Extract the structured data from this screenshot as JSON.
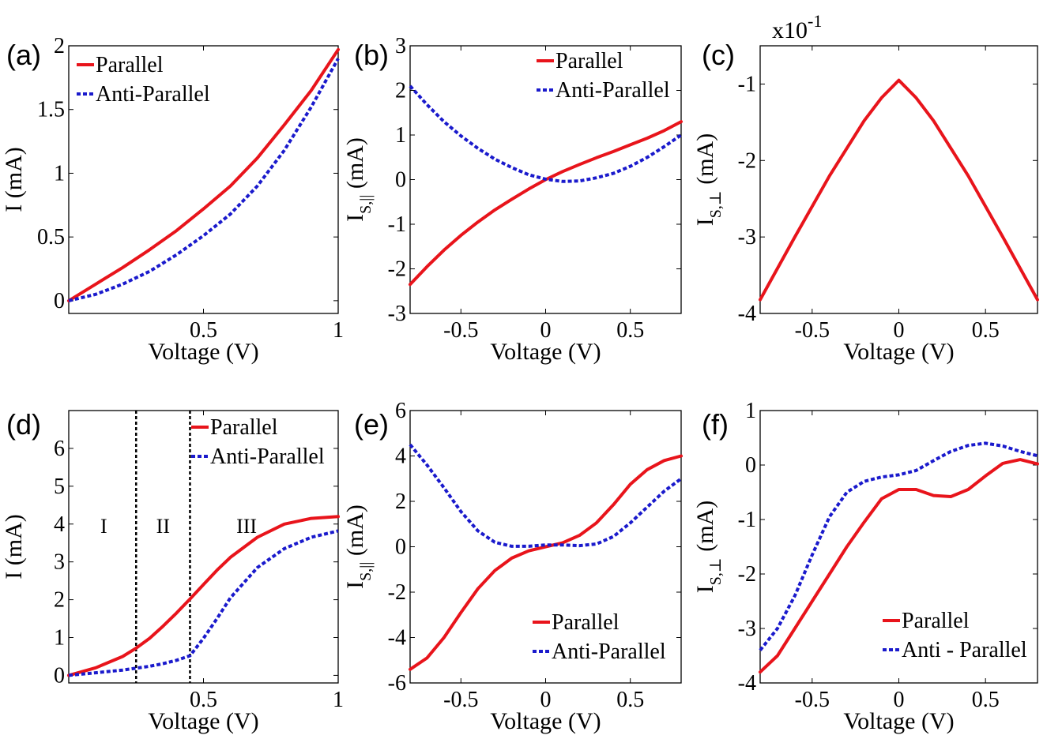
{
  "chart_data": [
    {
      "id": "a",
      "panel_label": "(a)",
      "type": "line",
      "xlabel": "Voltage (V)",
      "ylabel": {
        "main": "I (mA)",
        "sub": ""
      },
      "xlim": [
        0,
        1
      ],
      "ylim": [
        -0.1,
        2
      ],
      "xticks": [
        0.5,
        1
      ],
      "xtick_labels": [
        "0.5",
        "1"
      ],
      "yticks": [
        0,
        0.5,
        1,
        1.5,
        2
      ],
      "ytick_labels": [
        "0",
        "0.5",
        "1",
        "1.5",
        "2"
      ],
      "multiplier": "",
      "legend": {
        "position": "top-left",
        "entries": [
          "Parallel",
          "Anti-Parallel"
        ]
      },
      "series": [
        {
          "name": "Parallel",
          "color": "#e8141b",
          "style": "solid",
          "x": [
            0,
            0.1,
            0.2,
            0.3,
            0.4,
            0.5,
            0.6,
            0.7,
            0.8,
            0.9,
            1.0
          ],
          "y": [
            0,
            0.13,
            0.26,
            0.4,
            0.55,
            0.72,
            0.9,
            1.12,
            1.38,
            1.65,
            1.97
          ]
        },
        {
          "name": "Anti-Parallel",
          "color": "#1a1acc",
          "style": "dashed",
          "x": [
            0,
            0.1,
            0.2,
            0.3,
            0.4,
            0.5,
            0.6,
            0.7,
            0.8,
            0.9,
            1.0
          ],
          "y": [
            0,
            0.05,
            0.13,
            0.23,
            0.36,
            0.51,
            0.68,
            0.9,
            1.18,
            1.52,
            1.9
          ]
        }
      ],
      "vlines": [],
      "region_labels": []
    },
    {
      "id": "b",
      "panel_label": "(b)",
      "type": "line",
      "xlabel": "Voltage (V)",
      "ylabel": {
        "main": "I",
        "sub": "S,||",
        "unit": " (mA)"
      },
      "xlim": [
        -0.8,
        0.8
      ],
      "ylim": [
        -3,
        3
      ],
      "xticks": [
        -0.5,
        0,
        0.5
      ],
      "xtick_labels": [
        "-0.5",
        "0",
        "0.5"
      ],
      "yticks": [
        -3,
        -2,
        -1,
        0,
        1,
        2,
        3
      ],
      "ytick_labels": [
        "-3",
        "-2",
        "-1",
        "0",
        "1",
        "2",
        "3"
      ],
      "multiplier": "",
      "legend": {
        "position": "top-right",
        "entries": [
          "Parallel",
          "Anti-Parallel"
        ]
      },
      "series": [
        {
          "name": "Parallel",
          "color": "#e8141b",
          "style": "solid",
          "x": [
            -0.8,
            -0.7,
            -0.6,
            -0.5,
            -0.4,
            -0.3,
            -0.2,
            -0.1,
            0,
            0.1,
            0.2,
            0.3,
            0.4,
            0.5,
            0.6,
            0.7,
            0.8
          ],
          "y": [
            -2.35,
            -1.95,
            -1.58,
            -1.25,
            -0.95,
            -0.68,
            -0.44,
            -0.21,
            0,
            0.18,
            0.34,
            0.49,
            0.63,
            0.78,
            0.93,
            1.1,
            1.3
          ]
        },
        {
          "name": "Anti-Parallel",
          "color": "#1a1acc",
          "style": "dashed",
          "x": [
            -0.8,
            -0.7,
            -0.6,
            -0.5,
            -0.4,
            -0.3,
            -0.2,
            -0.1,
            0,
            0.1,
            0.2,
            0.3,
            0.4,
            0.5,
            0.6,
            0.7,
            0.8
          ],
          "y": [
            2.1,
            1.68,
            1.3,
            0.98,
            0.7,
            0.46,
            0.27,
            0.11,
            0.01,
            -0.04,
            -0.03,
            0.04,
            0.14,
            0.3,
            0.5,
            0.74,
            1.0
          ]
        }
      ],
      "vlines": [],
      "region_labels": []
    },
    {
      "id": "c",
      "panel_label": "(c)",
      "type": "line",
      "xlabel": "Voltage (V)",
      "ylabel": {
        "main": "I",
        "sub": "S,⊥",
        "unit": " (mA)"
      },
      "xlim": [
        -0.8,
        0.8
      ],
      "ylim": [
        -4,
        -0.5
      ],
      "xticks": [
        -0.5,
        0,
        0.5
      ],
      "xtick_labels": [
        "-0.5",
        "0",
        "0.5"
      ],
      "yticks": [
        -4,
        -3,
        -2,
        -1
      ],
      "ytick_labels": [
        "-4",
        "-3",
        "-2",
        "-1"
      ],
      "multiplier": {
        "base": "x10",
        "exp": "-1"
      },
      "legend": null,
      "series": [
        {
          "name": "Parallel",
          "color": "#e8141b",
          "style": "solid",
          "x": [
            -0.8,
            -0.6,
            -0.4,
            -0.2,
            -0.1,
            0,
            0.1,
            0.2,
            0.4,
            0.6,
            0.8
          ],
          "y": [
            -3.82,
            -3.0,
            -2.2,
            -1.48,
            -1.18,
            -0.95,
            -1.18,
            -1.48,
            -2.2,
            -3.0,
            -3.82
          ]
        }
      ],
      "vlines": [],
      "region_labels": []
    },
    {
      "id": "d",
      "panel_label": "(d)",
      "type": "line",
      "xlabel": "Voltage (V)",
      "ylabel": {
        "main": "I (mA)",
        "sub": ""
      },
      "xlim": [
        0,
        1
      ],
      "ylim": [
        -0.2,
        7
      ],
      "xticks": [
        0.5,
        1
      ],
      "xtick_labels": [
        "0.5",
        "1"
      ],
      "yticks": [
        0,
        1,
        2,
        3,
        4,
        5,
        6
      ],
      "ytick_labels": [
        "0",
        "1",
        "2",
        "3",
        "4",
        "5",
        "6"
      ],
      "multiplier": "",
      "legend": {
        "position": "top-right",
        "entries": [
          "Parallel",
          "Anti-Parallel"
        ]
      },
      "series": [
        {
          "name": "Parallel",
          "color": "#e8141b",
          "style": "solid",
          "x": [
            0,
            0.1,
            0.2,
            0.25,
            0.3,
            0.35,
            0.4,
            0.45,
            0.5,
            0.55,
            0.6,
            0.7,
            0.8,
            0.9,
            1.0
          ],
          "y": [
            0,
            0.2,
            0.5,
            0.72,
            0.98,
            1.3,
            1.65,
            2.02,
            2.4,
            2.78,
            3.12,
            3.65,
            4.0,
            4.15,
            4.2
          ]
        },
        {
          "name": "Anti-Parallel",
          "color": "#1a1acc",
          "style": "dashed",
          "x": [
            0,
            0.1,
            0.2,
            0.3,
            0.35,
            0.4,
            0.45,
            0.5,
            0.55,
            0.6,
            0.7,
            0.8,
            0.9,
            1.0
          ],
          "y": [
            0,
            0.07,
            0.14,
            0.24,
            0.31,
            0.4,
            0.52,
            0.98,
            1.5,
            2.05,
            2.85,
            3.35,
            3.65,
            3.82
          ]
        }
      ],
      "vlines": [
        0.25,
        0.45
      ],
      "region_labels": [
        {
          "text": "I",
          "x": 0.13,
          "y": 3.95
        },
        {
          "text": "II",
          "x": 0.35,
          "y": 3.95
        },
        {
          "text": "III",
          "x": 0.66,
          "y": 3.95
        }
      ]
    },
    {
      "id": "e",
      "panel_label": "(e)",
      "type": "line",
      "xlabel": "Voltage (V)",
      "ylabel": {
        "main": "I",
        "sub": "S,||",
        "unit": " (mA)"
      },
      "xlim": [
        -0.8,
        0.8
      ],
      "ylim": [
        -6,
        6
      ],
      "xticks": [
        -0.5,
        0,
        0.5
      ],
      "xtick_labels": [
        "-0.5",
        "0",
        "0.5"
      ],
      "yticks": [
        -6,
        -4,
        -2,
        0,
        2,
        4,
        6
      ],
      "ytick_labels": [
        "-6",
        "-4",
        "-2",
        "0",
        "2",
        "4",
        "6"
      ],
      "multiplier": "",
      "legend": {
        "position": "bottom-right",
        "entries": [
          "Parallel",
          "Anti-Parallel"
        ]
      },
      "series": [
        {
          "name": "Parallel",
          "color": "#e8141b",
          "style": "solid",
          "x": [
            -0.8,
            -0.7,
            -0.6,
            -0.5,
            -0.4,
            -0.3,
            -0.2,
            -0.1,
            0,
            0.1,
            0.2,
            0.3,
            0.4,
            0.5,
            0.6,
            0.7,
            0.8
          ],
          "y": [
            -5.4,
            -4.9,
            -4.0,
            -2.9,
            -1.85,
            -1.05,
            -0.5,
            -0.18,
            0,
            0.17,
            0.5,
            1.05,
            1.85,
            2.75,
            3.4,
            3.8,
            4.0
          ]
        },
        {
          "name": "Anti-Parallel",
          "color": "#1a1acc",
          "style": "dashed",
          "x": [
            -0.8,
            -0.7,
            -0.6,
            -0.5,
            -0.4,
            -0.3,
            -0.2,
            -0.1,
            0,
            0.1,
            0.2,
            0.3,
            0.4,
            0.5,
            0.6,
            0.7,
            0.8
          ],
          "y": [
            4.5,
            3.6,
            2.6,
            1.55,
            0.7,
            0.2,
            0.02,
            0.02,
            0.08,
            0.08,
            0.05,
            0.12,
            0.45,
            1.05,
            1.75,
            2.45,
            3.0
          ]
        }
      ],
      "vlines": [],
      "region_labels": []
    },
    {
      "id": "f",
      "panel_label": "(f)",
      "type": "line",
      "xlabel": "Voltage (V)",
      "ylabel": {
        "main": "I",
        "sub": "S,⊥",
        "unit": " (mA)"
      },
      "xlim": [
        -0.8,
        0.8
      ],
      "ylim": [
        -4,
        1
      ],
      "xticks": [
        -0.5,
        0,
        0.5
      ],
      "xtick_labels": [
        "-0.5",
        "0",
        "0.5"
      ],
      "yticks": [
        -4,
        -3,
        -2,
        -1,
        0,
        1
      ],
      "ytick_labels": [
        "-4",
        "-3",
        "-2",
        "-1",
        "0",
        "1"
      ],
      "multiplier": "",
      "legend": {
        "position": "bottom-right",
        "entries": [
          "Parallel",
          "Anti - Parallel"
        ]
      },
      "series": [
        {
          "name": "Parallel",
          "color": "#e8141b",
          "style": "solid",
          "x": [
            -0.8,
            -0.7,
            -0.6,
            -0.5,
            -0.4,
            -0.3,
            -0.2,
            -0.1,
            0,
            0.1,
            0.2,
            0.3,
            0.4,
            0.5,
            0.6,
            0.7,
            0.8
          ],
          "y": [
            -3.8,
            -3.5,
            -3.0,
            -2.5,
            -2.0,
            -1.5,
            -1.05,
            -0.62,
            -0.45,
            -0.45,
            -0.56,
            -0.58,
            -0.45,
            -0.2,
            0.03,
            0.1,
            0.02
          ]
        },
        {
          "name": "Anti-Parallel",
          "color": "#1a1acc",
          "style": "dashed",
          "x": [
            -0.8,
            -0.7,
            -0.6,
            -0.5,
            -0.4,
            -0.3,
            -0.2,
            -0.1,
            0,
            0.1,
            0.2,
            0.3,
            0.4,
            0.5,
            0.6,
            0.7,
            0.8
          ],
          "y": [
            -3.4,
            -3.0,
            -2.4,
            -1.65,
            -0.95,
            -0.5,
            -0.3,
            -0.22,
            -0.18,
            -0.1,
            0.08,
            0.25,
            0.36,
            0.4,
            0.35,
            0.25,
            0.17
          ]
        }
      ],
      "vlines": [],
      "region_labels": []
    }
  ]
}
